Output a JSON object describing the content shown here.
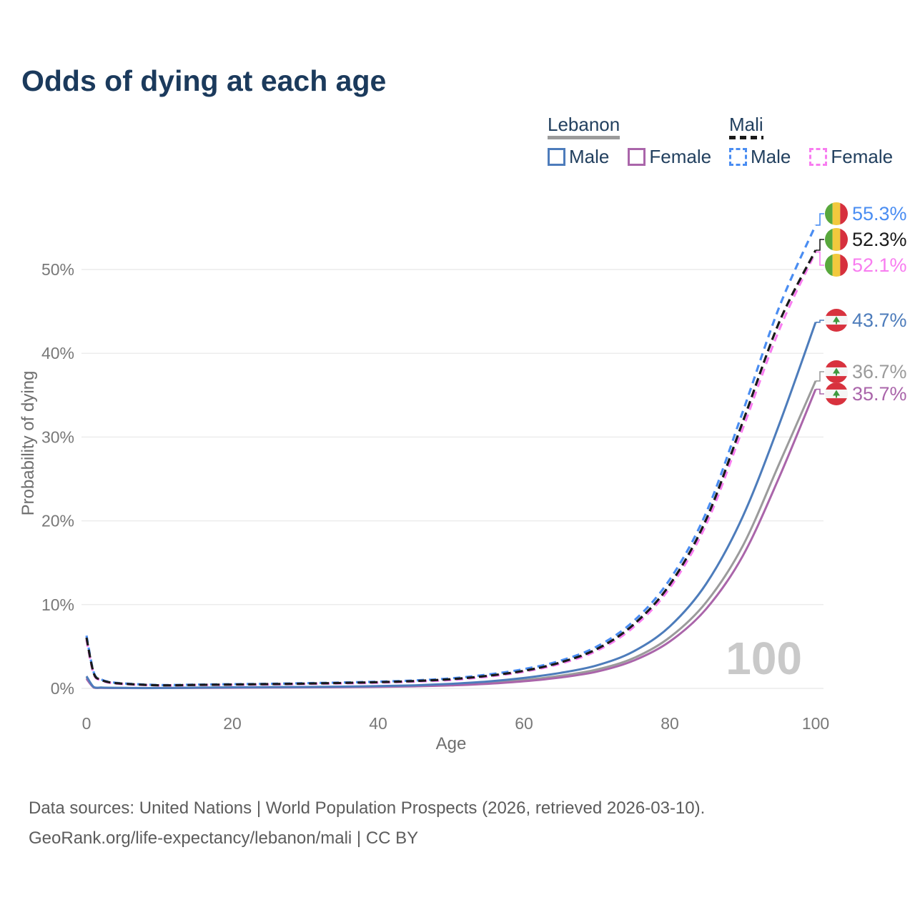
{
  "title": "Odds of dying at each age",
  "legend": {
    "groups": [
      {
        "label": "Lebanon",
        "line_style": "solid",
        "underline_color": "#9b9b9b",
        "items": [
          {
            "label": "Male",
            "color": "#4d7cbb"
          },
          {
            "label": "Female",
            "color": "#aa65aa"
          }
        ]
      },
      {
        "label": "Mali",
        "line_style": "dashed",
        "underline_color": "#1a1a1a",
        "items": [
          {
            "label": "Male",
            "color": "#4a8df2"
          },
          {
            "label": "Female",
            "color": "#f87df0"
          }
        ]
      }
    ]
  },
  "watermark": "100",
  "footer": {
    "line1": "Data sources: United Nations | World Population Prospects (2026, retrieved 2026-03-10).",
    "line2": "GeoRank.org/life-expectancy/lebanon/mali | CC BY"
  },
  "chart_data": {
    "type": "line",
    "title": "Odds of dying at each age",
    "xlabel": "Age",
    "ylabel": "Probability of dying",
    "xlim": [
      0,
      100
    ],
    "ylim_pct": [
      0,
      57
    ],
    "x_ticks": [
      0,
      20,
      40,
      60,
      80,
      100
    ],
    "y_ticks_pct": [
      0,
      10,
      20,
      30,
      40,
      50
    ],
    "grid": "horizontal",
    "legend_position": "top-right",
    "ages": [
      0,
      1,
      2,
      3,
      5,
      10,
      15,
      20,
      25,
      30,
      35,
      40,
      45,
      50,
      55,
      60,
      65,
      70,
      75,
      80,
      85,
      90,
      95,
      100
    ],
    "series": [
      {
        "name": "Mali — Male",
        "country": "Mali",
        "sex": "Male",
        "slug": "mali-male",
        "color": "#4a8df2",
        "dashed": true,
        "flag_icon": "mali-flag-icon",
        "end_label": "55.3%",
        "end_value_pct": 55.3,
        "values_pct": [
          6.3,
          1.9,
          1.1,
          0.8,
          0.6,
          0.4,
          0.45,
          0.5,
          0.55,
          0.62,
          0.7,
          0.8,
          0.95,
          1.2,
          1.65,
          2.3,
          3.3,
          5.0,
          8.0,
          13.0,
          21.0,
          33.0,
          45.5,
          55.3
        ]
      },
      {
        "name": "Mali",
        "country": "Mali",
        "sex": "All",
        "slug": "mali",
        "color": "#1a1a1a",
        "dashed": true,
        "flag_icon": "mali-flag-icon",
        "end_label": "52.3%",
        "end_value_pct": 52.3,
        "values_pct": [
          6.05,
          1.8,
          1.05,
          0.75,
          0.56,
          0.37,
          0.42,
          0.46,
          0.51,
          0.57,
          0.65,
          0.74,
          0.88,
          1.1,
          1.5,
          2.1,
          3.1,
          4.7,
          7.6,
          12.4,
          20.2,
          31.8,
          43.7,
          52.3
        ]
      },
      {
        "name": "Mali — Female",
        "country": "Mali",
        "sex": "Female",
        "slug": "mali-female",
        "color": "#f87df0",
        "dashed": true,
        "flag_icon": "mali-flag-icon",
        "end_label": "52.1%",
        "end_value_pct": 52.1,
        "values_pct": [
          5.8,
          1.7,
          1.0,
          0.7,
          0.52,
          0.35,
          0.4,
          0.43,
          0.47,
          0.53,
          0.6,
          0.68,
          0.82,
          1.0,
          1.4,
          2.0,
          2.95,
          4.5,
          7.3,
          12.0,
          19.6,
          31.0,
          42.8,
          52.1
        ]
      },
      {
        "name": "Lebanon — Male",
        "country": "Lebanon",
        "sex": "Male",
        "slug": "lebanon-male",
        "color": "#4d7cbb",
        "dashed": false,
        "flag_icon": "lebanon-flag-icon",
        "end_label": "43.7%",
        "end_value_pct": 43.7,
        "values_pct": [
          1.45,
          0.15,
          0.1,
          0.08,
          0.06,
          0.05,
          0.09,
          0.13,
          0.15,
          0.17,
          0.21,
          0.27,
          0.37,
          0.55,
          0.82,
          1.25,
          1.85,
          2.75,
          4.4,
          7.4,
          12.5,
          20.5,
          31.5,
          43.7
        ]
      },
      {
        "name": "Lebanon",
        "country": "Lebanon",
        "sex": "All",
        "slug": "lebanon",
        "color": "#9b9b9b",
        "dashed": false,
        "flag_icon": "lebanon-flag-icon",
        "end_label": "36.7%",
        "end_value_pct": 36.7,
        "values_pct": [
          1.3,
          0.12,
          0.08,
          0.06,
          0.05,
          0.04,
          0.07,
          0.1,
          0.12,
          0.14,
          0.17,
          0.22,
          0.3,
          0.44,
          0.66,
          1.0,
          1.5,
          2.25,
          3.6,
          6.1,
          10.3,
          17.0,
          26.8,
          36.7
        ]
      },
      {
        "name": "Lebanon — Female",
        "country": "Lebanon",
        "sex": "Female",
        "slug": "lebanon-female",
        "color": "#aa65aa",
        "dashed": false,
        "flag_icon": "lebanon-flag-icon",
        "end_label": "35.7%",
        "end_value_pct": 35.7,
        "values_pct": [
          1.15,
          0.1,
          0.07,
          0.05,
          0.04,
          0.04,
          0.06,
          0.08,
          0.1,
          0.12,
          0.14,
          0.18,
          0.25,
          0.36,
          0.55,
          0.85,
          1.3,
          2.0,
          3.3,
          5.6,
          9.5,
          15.8,
          25.2,
          35.7
        ]
      }
    ]
  }
}
